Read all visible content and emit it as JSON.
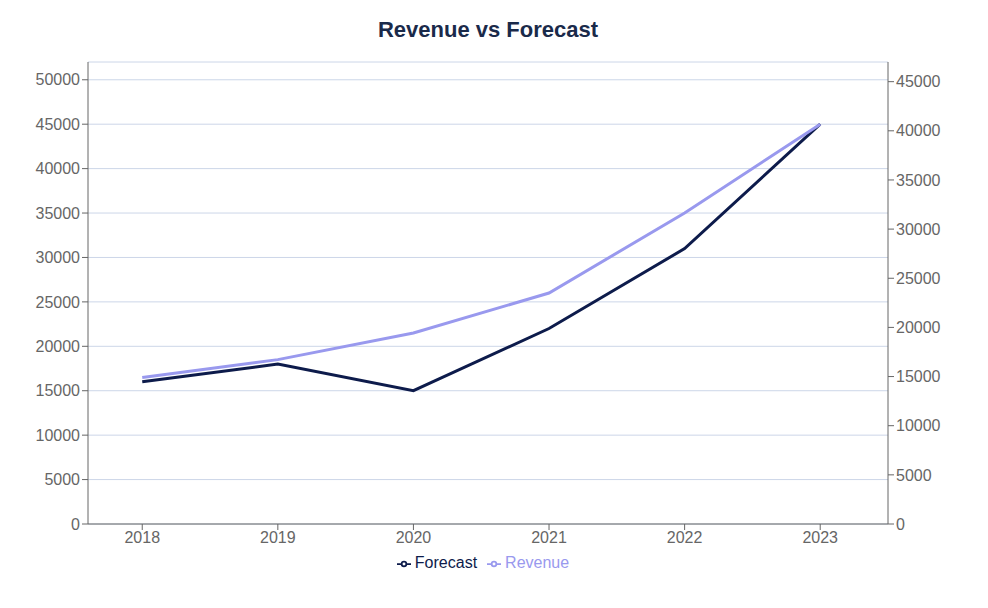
{
  "chart_data": {
    "type": "line",
    "title": "Revenue vs Forecast",
    "x": [
      2018,
      2019,
      2020,
      2021,
      2022,
      2023
    ],
    "series": [
      {
        "name": "Forecast",
        "color": "#0d1b4b",
        "values": [
          16000,
          18000,
          15000,
          22000,
          31000,
          45000
        ]
      },
      {
        "name": "Revenue",
        "color": "#9999ee",
        "values": [
          16500,
          18500,
          21500,
          26000,
          35000,
          45000
        ]
      }
    ],
    "xlim": [
      2017.6,
      2023.5
    ],
    "xticks": [
      2018,
      2019,
      2020,
      2021,
      2022,
      2023
    ],
    "ylim": [
      0,
      52000
    ],
    "yticks": [
      0,
      5000,
      10000,
      15000,
      20000,
      25000,
      30000,
      35000,
      40000,
      45000,
      50000
    ],
    "y2lim": [
      0,
      47000
    ],
    "y2ticks": [
      0,
      5000,
      10000,
      15000,
      20000,
      25000,
      30000,
      35000,
      40000,
      45000
    ],
    "grid": true,
    "legend": "bottom"
  }
}
